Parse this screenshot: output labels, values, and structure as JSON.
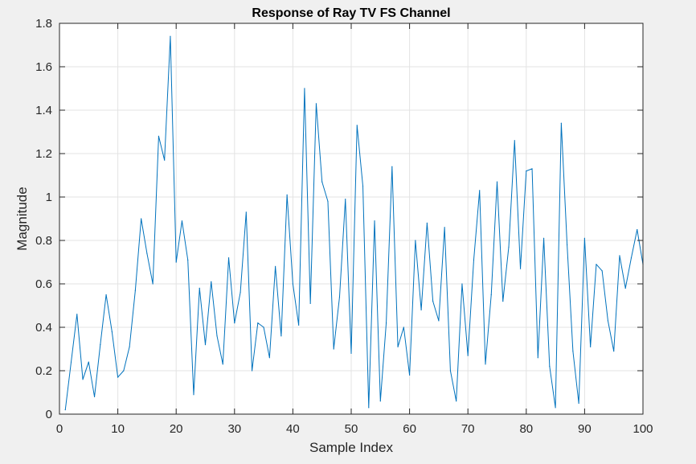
{
  "chart_data": {
    "type": "line",
    "title": "Response of Ray TV FS Channel",
    "xlabel": "Sample Index",
    "ylabel": "Magnitude",
    "xlim": [
      0,
      100
    ],
    "ylim": [
      0,
      1.8
    ],
    "xticks": [
      0,
      10,
      20,
      30,
      40,
      50,
      60,
      70,
      80,
      90,
      100
    ],
    "yticks": [
      0,
      0.2,
      0.4,
      0.6,
      0.8,
      1,
      1.2,
      1.4,
      1.6,
      1.8
    ],
    "xtick_labels": [
      "0",
      "10",
      "20",
      "30",
      "40",
      "50",
      "60",
      "70",
      "80",
      "90",
      "100"
    ],
    "ytick_labels": [
      "0",
      "0.2",
      "0.4",
      "0.6",
      "0.8",
      "1",
      "1.2",
      "1.4",
      "1.6",
      "1.8"
    ],
    "grid": true,
    "series": [
      {
        "color": "#0072bd",
        "x": [
          1,
          2,
          3,
          4,
          5,
          6,
          7,
          8,
          9,
          10,
          11,
          12,
          13,
          14,
          15,
          16,
          17,
          18,
          19,
          20,
          21,
          22,
          23,
          24,
          25,
          26,
          27,
          28,
          29,
          30,
          31,
          32,
          33,
          34,
          35,
          36,
          37,
          38,
          39,
          40,
          41,
          42,
          43,
          44,
          45,
          46,
          47,
          48,
          49,
          50,
          51,
          52,
          53,
          54,
          55,
          56,
          57,
          58,
          59,
          60,
          61,
          62,
          63,
          64,
          65,
          66,
          67,
          68,
          69,
          70,
          71,
          72,
          73,
          74,
          75,
          76,
          77,
          78,
          79,
          80,
          81,
          82,
          83,
          84,
          85,
          86,
          87,
          88,
          89,
          90,
          91,
          92,
          93,
          94,
          95,
          96,
          97,
          98,
          99,
          100
        ],
        "y": [
          0.02,
          0.24,
          0.46,
          0.16,
          0.24,
          0.08,
          0.32,
          0.55,
          0.38,
          0.17,
          0.2,
          0.31,
          0.57,
          0.9,
          0.74,
          0.6,
          1.28,
          1.17,
          1.74,
          0.7,
          0.89,
          0.71,
          0.09,
          0.58,
          0.32,
          0.61,
          0.36,
          0.23,
          0.72,
          0.42,
          0.56,
          0.93,
          0.2,
          0.42,
          0.4,
          0.26,
          0.68,
          0.36,
          1.01,
          0.6,
          0.41,
          1.5,
          0.51,
          1.43,
          1.07,
          0.98,
          0.3,
          0.54,
          0.99,
          0.28,
          1.33,
          1.05,
          0.03,
          0.89,
          0.06,
          0.42,
          1.14,
          0.31,
          0.4,
          0.18,
          0.8,
          0.48,
          0.88,
          0.52,
          0.43,
          0.86,
          0.2,
          0.06,
          0.6,
          0.27,
          0.71,
          1.03,
          0.23,
          0.55,
          1.07,
          0.52,
          0.77,
          1.26,
          0.67,
          1.12,
          1.13,
          0.26,
          0.81,
          0.22,
          0.03,
          1.34,
          0.78,
          0.29,
          0.05,
          0.81,
          0.31,
          0.69,
          0.66,
          0.43,
          0.29,
          0.73,
          0.58,
          0.72,
          0.85,
          0.69
        ]
      }
    ]
  }
}
